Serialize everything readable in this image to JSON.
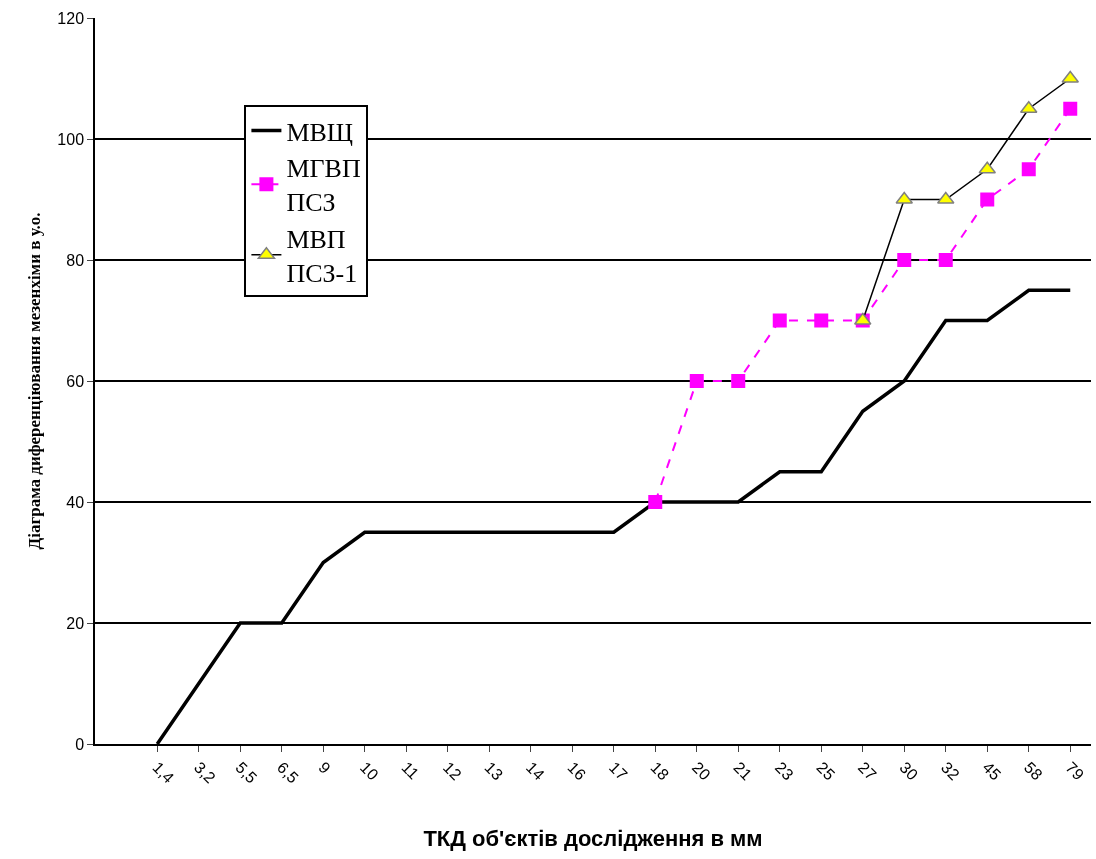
{
  "chart_data": {
    "type": "line",
    "xlabel": "ТКД об'єктів дослідження в мм",
    "ylabel": "Діаграма диференціювання мезенхіми в у.о.",
    "categories": [
      "1,4",
      "3,2",
      "5,5",
      "6,5",
      "9",
      "10",
      "11",
      "12",
      "13",
      "14",
      "16",
      "17",
      "18",
      "20",
      "21",
      "23",
      "25",
      "27",
      "30",
      "32",
      "45",
      "58",
      "79"
    ],
    "series": [
      {
        "name": "МВЩ",
        "color": "#000000",
        "marker": "none",
        "line_style": "solid",
        "values": [
          0,
          10,
          20,
          20,
          30,
          35,
          35,
          35,
          35,
          35,
          35,
          35,
          40,
          40,
          40,
          45,
          45,
          55,
          60,
          70,
          70,
          75,
          75
        ]
      },
      {
        "name": "МГВП ПСЗ",
        "color": "#ff00ff",
        "marker": "square",
        "line_style": "dashed",
        "values": [
          null,
          null,
          null,
          null,
          null,
          null,
          null,
          null,
          null,
          null,
          null,
          null,
          40,
          60,
          60,
          70,
          70,
          70,
          80,
          80,
          90,
          95,
          105
        ]
      },
      {
        "name": "МВП ПСЗ-1",
        "color": "#000000",
        "marker": "triangle",
        "line_style": "solid",
        "values": [
          null,
          null,
          null,
          null,
          null,
          null,
          null,
          null,
          null,
          null,
          null,
          null,
          null,
          null,
          null,
          null,
          null,
          70,
          90,
          90,
          95,
          105,
          110
        ]
      }
    ],
    "ylim": [
      0,
      120
    ],
    "yticks": [
      0,
      20,
      40,
      60,
      80,
      100,
      120
    ],
    "grid": "y",
    "legend": "top left"
  }
}
